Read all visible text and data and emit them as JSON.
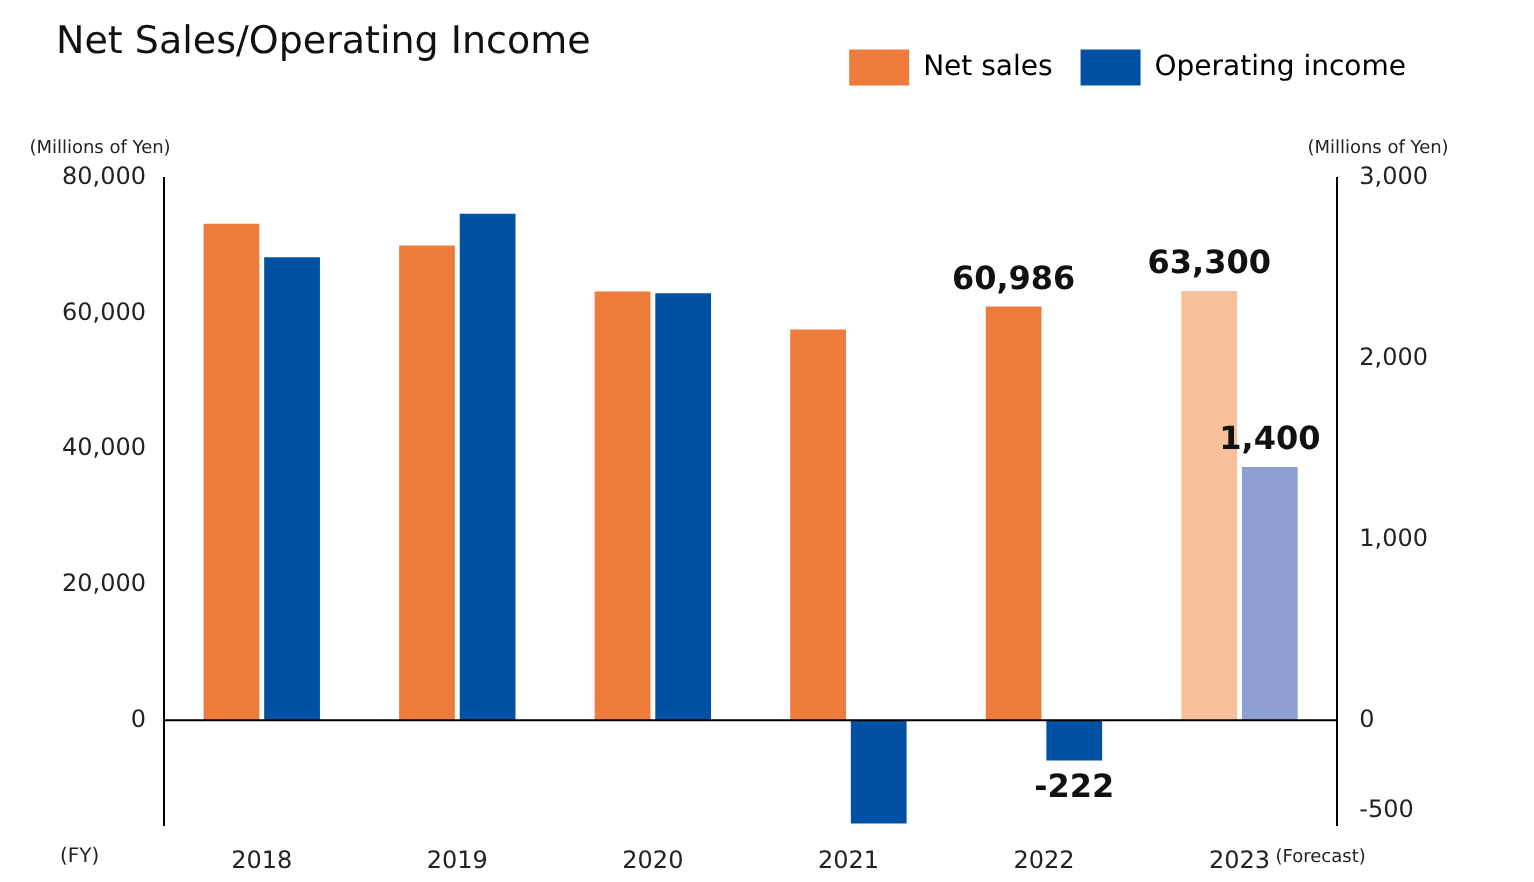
{
  "chart_data": {
    "type": "bar",
    "title": "Net Sales/Operating Income",
    "ylabel": "(Millions of Yen)",
    "y2label": "(Millions of Yen)",
    "xlabel": "(FY)",
    "categories": [
      "2018",
      "2019",
      "2020",
      "2021",
      "2022",
      "2023"
    ],
    "series": [
      {
        "name": "Net sales",
        "color": "#ed7b3c",
        "colors": [
          "#ed7b3c",
          "#ed7b3c",
          "#ed7b3c",
          "#ed7b3c",
          "#ed7b3c",
          "#f8c19b"
        ],
        "values": [
          73200,
          70000,
          63200,
          57600,
          60986,
          63300
        ],
        "value_labels": [
          null,
          null,
          null,
          null,
          "60,986",
          "63,300"
        ]
      },
      {
        "name": "Operating income",
        "color": "#0050a4",
        "colors": [
          "#0050a4",
          "#0050a4",
          "#0050a4",
          "#0050a4",
          "#0050a4",
          "#8f9fd4"
        ],
        "values": [
          2560,
          2800,
          2360,
          -570,
          -222,
          1400
        ],
        "value_labels": [
          null,
          null,
          null,
          null,
          "-222",
          "1,400"
        ],
        "axis": "y2"
      }
    ],
    "ylim": [
      -15467,
      80000
    ],
    "yticks": [
      {
        "value": 0,
        "label": "0"
      },
      {
        "value": 20000,
        "label": "20,000"
      },
      {
        "value": 40000,
        "label": "40,000"
      },
      {
        "value": 60000,
        "label": "60,000"
      },
      {
        "value": 80000,
        "label": "80,000"
      }
    ],
    "y2lim": [
      -580,
      3000
    ],
    "y2ticks": [
      {
        "value": -500,
        "label": "-500"
      },
      {
        "value": 0,
        "label": "0"
      },
      {
        "value": 1000,
        "label": "1,000"
      },
      {
        "value": 2000,
        "label": "2,000"
      },
      {
        "value": 3000,
        "label": "3,000"
      }
    ],
    "annotations": [
      "(Forecast)"
    ],
    "ref_lines": [
      {
        "axis": "y",
        "value": 0,
        "color": "#000000"
      }
    ],
    "legend": "top right",
    "grid": false
  }
}
